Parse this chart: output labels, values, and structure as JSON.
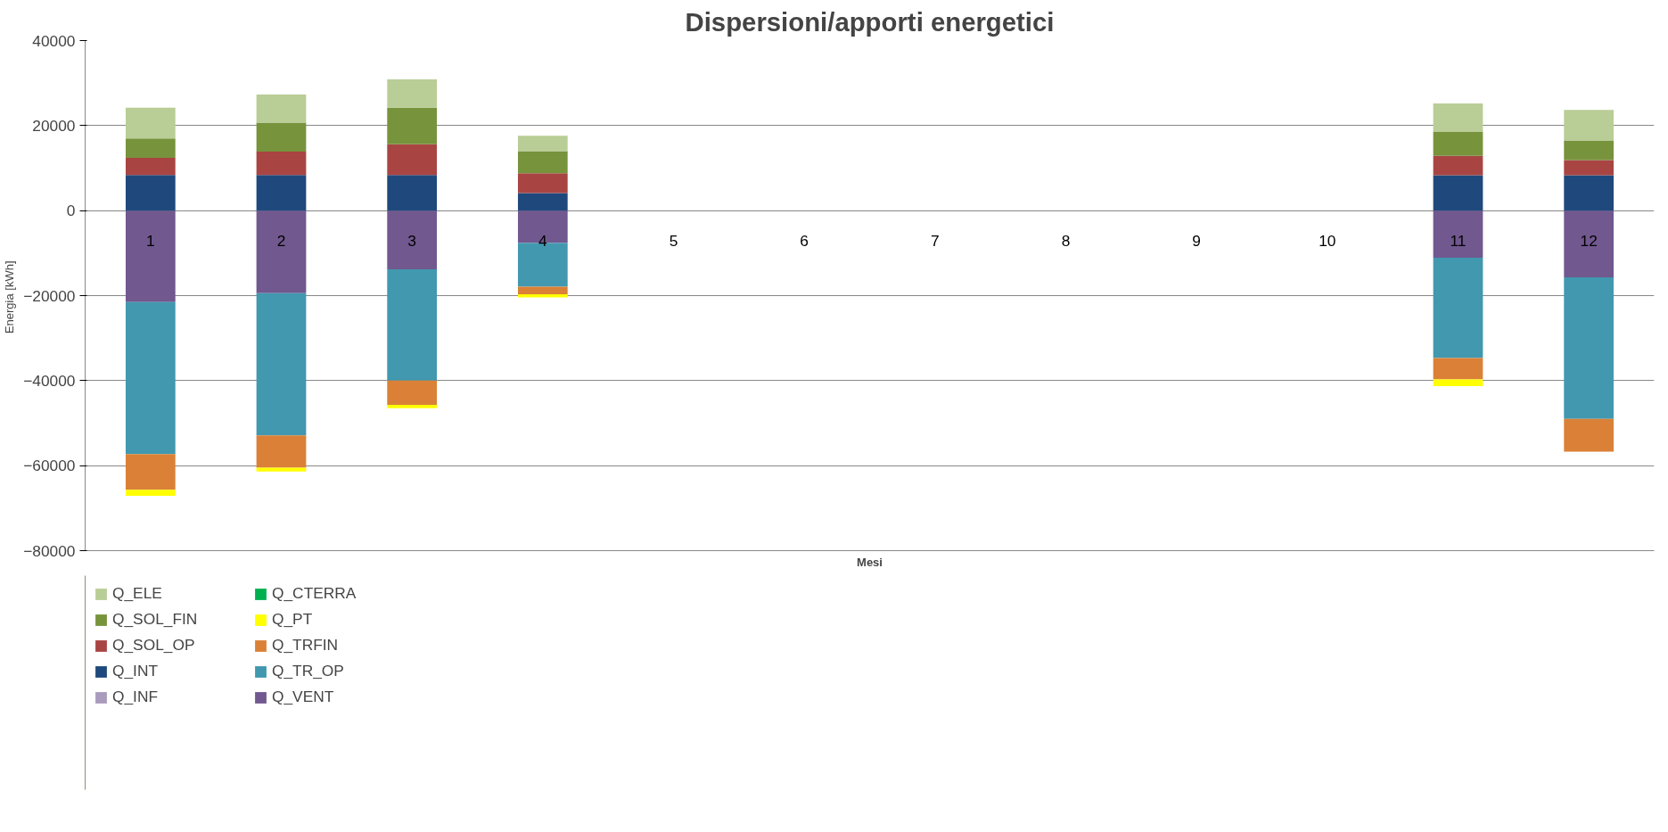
{
  "chart_data": {
    "type": "bar",
    "stacked": true,
    "title": "Dispersioni/apporti energetici",
    "xlabel": "Mesi",
    "ylabel": "Energia  [kWh]",
    "categories": [
      "1",
      "2",
      "3",
      "4",
      "5",
      "6",
      "7",
      "8",
      "9",
      "10",
      "11",
      "12"
    ],
    "ylim": [
      -80000,
      40000
    ],
    "yticks": [
      -80000,
      -60000,
      -40000,
      -20000,
      0,
      20000,
      40000
    ],
    "grid": "y",
    "legend": "bottom",
    "series": [
      {
        "name": "Q_VENT",
        "color": "#71588f",
        "values": [
          -21500,
          -19400,
          -13800,
          -7600,
          0,
          0,
          0,
          0,
          0,
          0,
          -11100,
          -15700
        ]
      },
      {
        "name": "Q_TR_OP",
        "color": "#4198af",
        "values": [
          -35800,
          -33500,
          -26200,
          -10300,
          0,
          0,
          0,
          0,
          0,
          0,
          -23600,
          -33300
        ]
      },
      {
        "name": "Q_TRFIN",
        "color": "#da8137",
        "values": [
          -8400,
          -7600,
          -5700,
          -1800,
          0,
          0,
          0,
          0,
          0,
          0,
          -5000,
          -7700
        ]
      },
      {
        "name": "Q_PT",
        "color": "#ffff00",
        "values": [
          -1400,
          -900,
          -800,
          -700,
          0,
          0,
          0,
          0,
          0,
          0,
          -1600,
          0
        ]
      },
      {
        "name": "Q_CTERRA",
        "color": "#00b050",
        "values": [
          0,
          0,
          0,
          0,
          0,
          0,
          0,
          0,
          0,
          0,
          0,
          0
        ]
      },
      {
        "name": "Q_INF",
        "color": "#a99bbd",
        "values": [
          0,
          0,
          0,
          0,
          0,
          0,
          0,
          0,
          0,
          0,
          0,
          0
        ]
      },
      {
        "name": "Q_INT",
        "color": "#1f497d",
        "values": [
          8400,
          8400,
          8400,
          4100,
          0,
          0,
          0,
          0,
          0,
          0,
          8300,
          8300
        ]
      },
      {
        "name": "Q_SOL_OP",
        "color": "#a84543",
        "values": [
          4000,
          5500,
          7200,
          4700,
          0,
          0,
          0,
          0,
          0,
          0,
          4600,
          3600
        ]
      },
      {
        "name": "Q_SOL_FIN",
        "color": "#77933c",
        "values": [
          4600,
          6800,
          8600,
          5200,
          0,
          0,
          0,
          0,
          0,
          0,
          5700,
          4600
        ]
      },
      {
        "name": "Q_ELE",
        "color": "#b9cd96",
        "values": [
          7200,
          6600,
          6700,
          3600,
          0,
          0,
          0,
          0,
          0,
          0,
          6600,
          7200
        ]
      }
    ]
  }
}
